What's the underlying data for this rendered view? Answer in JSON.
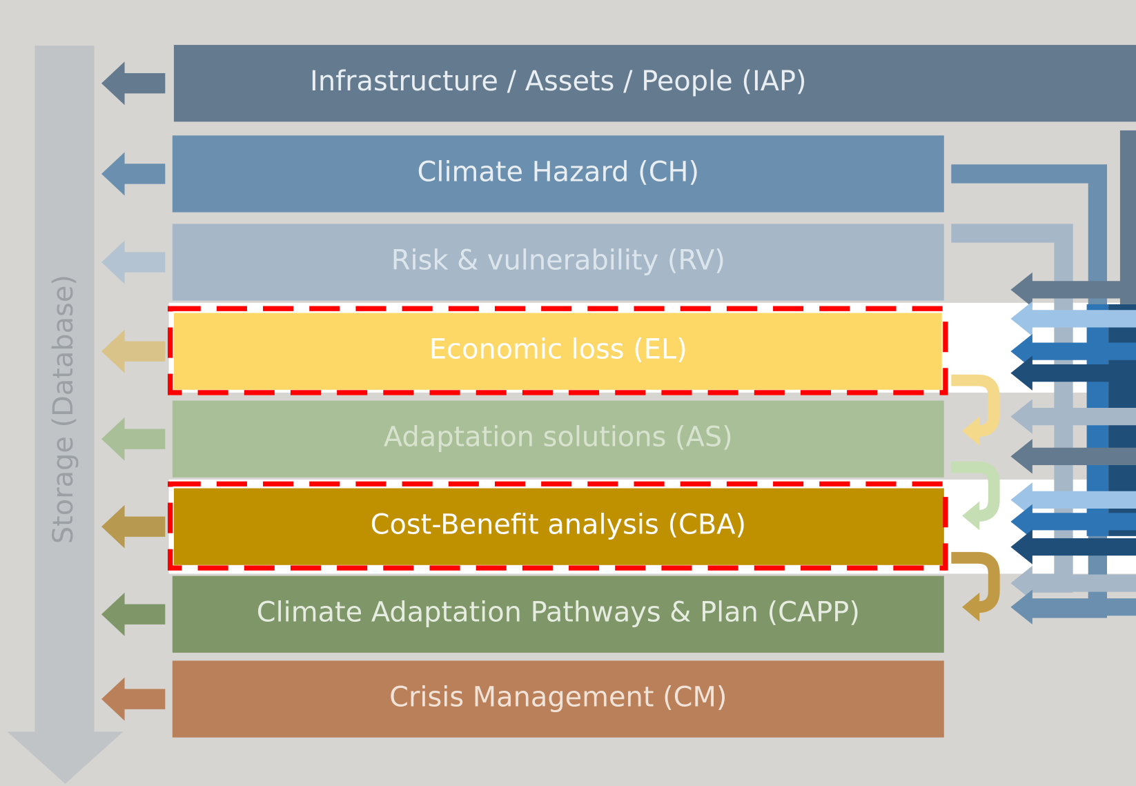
{
  "storage": {
    "label": "Storage (Database)"
  },
  "layers": [
    {
      "label": "Infrastructure / Assets / People (IAP)"
    },
    {
      "label": "Climate Hazard (CH)"
    },
    {
      "label": "Risk & vulnerability (RV)"
    },
    {
      "label": "Economic loss (EL)"
    },
    {
      "label": "Adaptation solutions (AS)"
    },
    {
      "label": "Cost-Benefit analysis (CBA)"
    },
    {
      "label": "Climate Adaptation Pathways & Plan (CAPP)"
    },
    {
      "label": "Crisis Management (CM)"
    }
  ]
}
